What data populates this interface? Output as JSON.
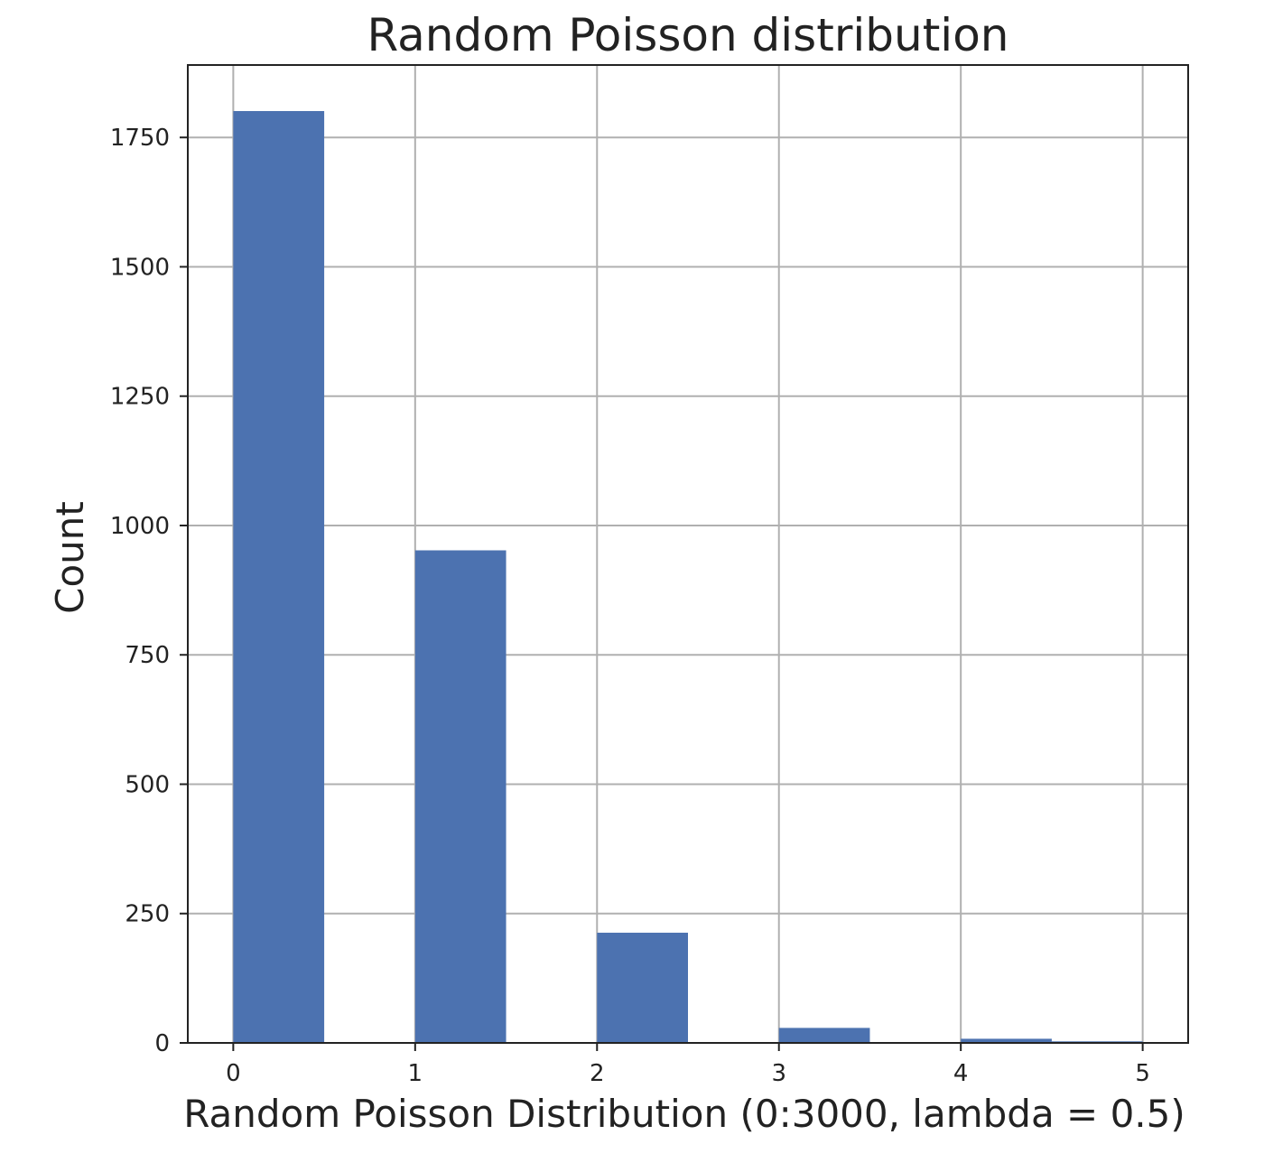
{
  "chart_data": {
    "type": "bar",
    "title": "Random Poisson distribution",
    "xlabel": "Random Poisson Distribution (0:3000, lambda = 0.5)",
    "ylabel": "Count",
    "xlim": [
      -0.25,
      5.25
    ],
    "ylim": [
      0,
      1890
    ],
    "xticks": [
      0,
      1,
      2,
      3,
      4,
      5
    ],
    "yticks": [
      0,
      250,
      500,
      750,
      1000,
      1250,
      1500,
      1750
    ],
    "grid": true,
    "bar_color": "#4c72b0",
    "bins": [
      {
        "x0": 0.0,
        "x1": 0.5,
        "count": 1801
      },
      {
        "x0": 0.5,
        "x1": 1.0,
        "count": 0
      },
      {
        "x0": 1.0,
        "x1": 1.5,
        "count": 952
      },
      {
        "x0": 1.5,
        "x1": 2.0,
        "count": 0
      },
      {
        "x0": 2.0,
        "x1": 2.5,
        "count": 213
      },
      {
        "x0": 2.5,
        "x1": 3.0,
        "count": 0
      },
      {
        "x0": 3.0,
        "x1": 3.5,
        "count": 29
      },
      {
        "x0": 3.5,
        "x1": 4.0,
        "count": 0
      },
      {
        "x0": 4.0,
        "x1": 4.5,
        "count": 8
      },
      {
        "x0": 4.5,
        "x1": 5.0,
        "count": 3
      }
    ]
  }
}
